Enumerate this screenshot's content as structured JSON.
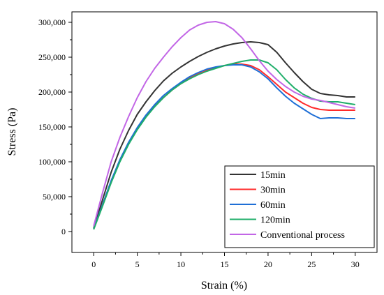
{
  "chart_data": {
    "type": "line",
    "title": "",
    "xlabel": "Strain (%)",
    "ylabel": "Stress (Pa)",
    "xlim": [
      -2.5,
      32.5
    ],
    "ylim": [
      -30000,
      315000
    ],
    "xticks": [
      0,
      5,
      10,
      15,
      20,
      25,
      30
    ],
    "yticks": [
      0,
      50000,
      100000,
      150000,
      200000,
      250000,
      300000
    ],
    "ytick_labels": [
      "0",
      "50,000",
      "100,000",
      "150,000",
      "200,000",
      "250,000",
      "300,000"
    ],
    "grid": false,
    "legend_position": "bottom-right",
    "series": [
      {
        "name": "15min",
        "color": "#333333",
        "x": [
          0,
          1,
          2,
          3,
          4,
          5,
          6,
          7,
          8,
          9,
          10,
          11,
          12,
          13,
          14,
          15,
          16,
          17,
          18,
          19,
          20,
          21,
          22,
          23,
          24,
          25,
          26,
          27,
          28,
          29,
          30
        ],
        "y": [
          5000,
          45000,
          85000,
          118000,
          145000,
          168000,
          186000,
          202000,
          216000,
          227000,
          236000,
          244000,
          251000,
          257000,
          262000,
          266000,
          269000,
          271000,
          272000,
          271000,
          268000,
          257000,
          242000,
          228000,
          215000,
          204000,
          198000,
          196000,
          195000,
          193000,
          193000
        ]
      },
      {
        "name": "30min",
        "color": "#ff2a2a",
        "x": [
          0,
          1,
          2,
          3,
          4,
          5,
          6,
          7,
          8,
          9,
          10,
          11,
          12,
          13,
          14,
          15,
          16,
          17,
          18,
          19,
          20,
          21,
          22,
          23,
          24,
          25,
          26,
          27,
          28,
          29,
          30
        ],
        "y": [
          4000,
          38000,
          72000,
          102000,
          127000,
          148000,
          165000,
          180000,
          192000,
          203000,
          212000,
          220000,
          226000,
          231000,
          235000,
          238000,
          240000,
          240000,
          238000,
          232000,
          222000,
          211000,
          200000,
          192000,
          184000,
          178000,
          175000,
          174000,
          174000,
          174000,
          174000
        ]
      },
      {
        "name": "60min",
        "color": "#1f6fd6",
        "x": [
          0,
          1,
          2,
          3,
          4,
          5,
          6,
          7,
          8,
          9,
          10,
          11,
          12,
          13,
          14,
          15,
          16,
          17,
          18,
          19,
          20,
          21,
          22,
          23,
          24,
          25,
          26,
          27,
          28,
          29,
          30
        ],
        "y": [
          4000,
          38000,
          73000,
          103000,
          128000,
          149000,
          167000,
          182000,
          195000,
          205000,
          214000,
          222000,
          228000,
          233000,
          236000,
          238000,
          239000,
          239000,
          236000,
          229000,
          219000,
          206000,
          194000,
          184000,
          176000,
          168000,
          162000,
          163000,
          163000,
          162000,
          162000
        ]
      },
      {
        "name": "120min",
        "color": "#1fae6a",
        "x": [
          0,
          1,
          2,
          3,
          4,
          5,
          6,
          7,
          8,
          9,
          10,
          11,
          12,
          13,
          14,
          15,
          16,
          17,
          18,
          19,
          20,
          21,
          22,
          23,
          24,
          25,
          26,
          27,
          28,
          29,
          30
        ],
        "y": [
          3000,
          36000,
          70000,
          100000,
          125000,
          146000,
          164000,
          179000,
          192000,
          203000,
          212000,
          219000,
          225000,
          230000,
          234000,
          238000,
          241000,
          244000,
          246000,
          246000,
          242000,
          232000,
          218000,
          206000,
          197000,
          191000,
          187000,
          186000,
          186000,
          184000,
          182000
        ]
      },
      {
        "name": "Conventional process",
        "color": "#c266e6",
        "x": [
          0,
          1,
          2,
          3,
          4,
          5,
          6,
          7,
          8,
          9,
          10,
          11,
          12,
          13,
          14,
          15,
          16,
          17,
          18,
          19,
          20,
          21,
          22,
          23,
          24,
          25,
          26,
          27,
          28,
          29,
          30
        ],
        "y": [
          8000,
          55000,
          100000,
          135000,
          165000,
          192000,
          215000,
          234000,
          250000,
          265000,
          278000,
          289000,
          296000,
          300000,
          301000,
          298000,
          290000,
          278000,
          262000,
          245000,
          230000,
          218000,
          208000,
          200000,
          194000,
          190000,
          188000,
          185000,
          182000,
          179000,
          177000
        ]
      }
    ]
  }
}
